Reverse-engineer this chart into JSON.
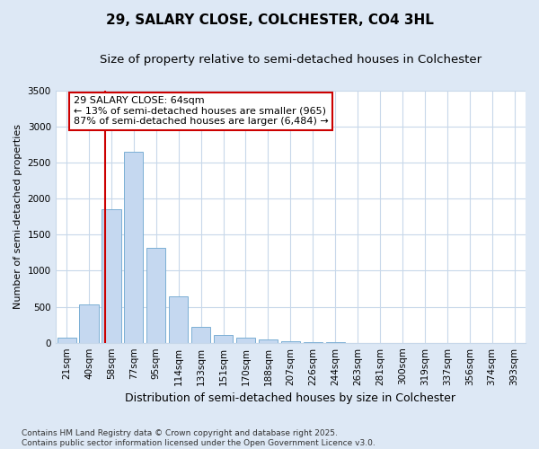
{
  "title": "29, SALARY CLOSE, COLCHESTER, CO4 3HL",
  "subtitle": "Size of property relative to semi-detached houses in Colchester",
  "xlabel": "Distribution of semi-detached houses by size in Colchester",
  "ylabel": "Number of semi-detached properties",
  "categories": [
    "21sqm",
    "40sqm",
    "58sqm",
    "77sqm",
    "95sqm",
    "114sqm",
    "133sqm",
    "151sqm",
    "170sqm",
    "188sqm",
    "207sqm",
    "226sqm",
    "244sqm",
    "263sqm",
    "281sqm",
    "300sqm",
    "319sqm",
    "337sqm",
    "356sqm",
    "374sqm",
    "393sqm"
  ],
  "values": [
    75,
    530,
    1850,
    2650,
    1320,
    640,
    220,
    105,
    70,
    45,
    20,
    5,
    3,
    2,
    1,
    0,
    0,
    0,
    0,
    0,
    0
  ],
  "bar_color": "#c5d8f0",
  "bar_edge_color": "#7bafd4",
  "bar_width": 0.85,
  "vline_color": "#cc0000",
  "vline_x": 1.72,
  "annotation_text": "29 SALARY CLOSE: 64sqm\n← 13% of semi-detached houses are smaller (965)\n87% of semi-detached houses are larger (6,484) →",
  "annotation_box_color": "#cc0000",
  "ylim": [
    0,
    3500
  ],
  "yticks": [
    0,
    500,
    1000,
    1500,
    2000,
    2500,
    3000,
    3500
  ],
  "grid_color": "#c8d8ea",
  "plot_bg_color": "#ffffff",
  "outer_bg_color": "#dde8f5",
  "footnote": "Contains HM Land Registry data © Crown copyright and database right 2025.\nContains public sector information licensed under the Open Government Licence v3.0.",
  "title_fontsize": 11,
  "subtitle_fontsize": 9.5,
  "xlabel_fontsize": 9,
  "ylabel_fontsize": 8,
  "tick_fontsize": 7.5,
  "annotation_fontsize": 8,
  "footnote_fontsize": 6.5
}
